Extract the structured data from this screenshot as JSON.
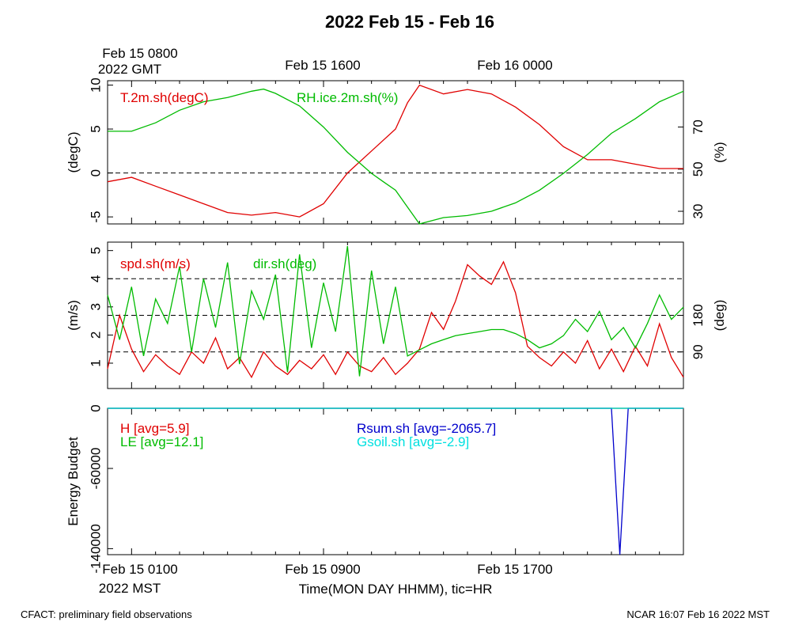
{
  "title": "2022 Feb 15 - Feb 16",
  "top_time_labels": [
    {
      "lines": [
        "Feb 15 0800",
        "2022 GMT"
      ]
    },
    {
      "lines": [
        "Feb 15 1600"
      ]
    },
    {
      "lines": [
        "Feb 16 0000"
      ]
    }
  ],
  "bottom_time_labels": [
    {
      "lines": [
        "Feb 15 0100",
        "2022 MST"
      ]
    },
    {
      "lines": [
        "Feb 15 0900"
      ]
    },
    {
      "lines": [
        "Feb 15 1700"
      ]
    }
  ],
  "xlabel": "Time(MON DAY HHMM), tic=HR",
  "footer_left": "CFACT: preliminary field observations",
  "footer_right": "NCAR 16:07 Feb 16 2022 MST",
  "colors": {
    "red": "#e00000",
    "green": "#00bb00",
    "blue": "#0000cc",
    "cyan": "#00e0e0"
  },
  "chart_data": [
    {
      "type": "line",
      "panel": "temperature-humidity",
      "x_hours_range": [
        0,
        24
      ],
      "left_axis": {
        "label": "(degC)",
        "range": [
          -5.8,
          10.5
        ],
        "ticks": [
          -5,
          0,
          5,
          10
        ]
      },
      "right_axis": {
        "label": "(%)",
        "range": [
          24,
          92
        ],
        "ticks": [
          30,
          50,
          70
        ]
      },
      "reference_lines_left": [
        0
      ],
      "series": [
        {
          "name": "T.2m.sh(degC)",
          "axis": "left",
          "color": "red",
          "x": [
            0,
            1,
            2,
            3,
            4,
            5,
            6,
            7,
            8,
            9,
            10,
            11,
            12,
            12.5,
            13,
            14,
            15,
            16,
            17,
            18,
            19,
            20,
            21,
            22,
            23,
            24
          ],
          "y": [
            -1,
            -0.5,
            -1.5,
            -2.5,
            -3.5,
            -4.5,
            -4.8,
            -4.5,
            -5,
            -3.5,
            0,
            2.5,
            5,
            8,
            10,
            9,
            9.5,
            9,
            7.5,
            5.5,
            3,
            1.5,
            1.5,
            1,
            0.5,
            0.5
          ]
        },
        {
          "name": "RH.ice.2m.sh(%)",
          "axis": "right",
          "color": "green",
          "x": [
            0,
            1,
            2,
            3,
            4,
            5,
            6,
            6.5,
            7,
            8,
            9,
            10,
            11,
            11.5,
            12,
            13,
            14,
            15,
            16,
            17,
            18,
            19,
            20,
            21,
            22,
            23,
            24
          ],
          "y": [
            68,
            68,
            72,
            78,
            82,
            84,
            87,
            88,
            86,
            80,
            70,
            58,
            48,
            44,
            40,
            24,
            27,
            28,
            30,
            34,
            40,
            48,
            57,
            67,
            74,
            82,
            87
          ]
        }
      ],
      "legend": [
        "T.2m.sh(degC)",
        "RH.ice.2m.sh(%)"
      ]
    },
    {
      "type": "line",
      "panel": "wind",
      "x_hours_range": [
        0,
        24
      ],
      "left_axis": {
        "label": "(m/s)",
        "range": [
          0.1,
          5.3
        ],
        "ticks": [
          1,
          2,
          3,
          4,
          5
        ]
      },
      "right_axis": {
        "label": "(deg)",
        "range": [
          0,
          360
        ],
        "ticks": [
          90,
          180
        ]
      },
      "reference_lines_right": [
        90,
        180,
        270
      ],
      "series": [
        {
          "name": "spd.sh(m/s)",
          "axis": "left",
          "color": "red",
          "x": [
            0,
            0.5,
            1,
            1.5,
            2,
            2.5,
            3,
            3.5,
            4,
            4.5,
            5,
            5.5,
            6,
            6.5,
            7,
            7.5,
            8,
            8.5,
            9,
            9.5,
            10,
            10.5,
            11,
            11.5,
            12,
            12.5,
            13,
            13.5,
            14,
            14.5,
            15,
            15.5,
            16,
            16.5,
            17,
            17.5,
            18,
            18.5,
            19,
            19.5,
            20,
            20.5,
            21,
            21.5,
            22,
            22.5,
            23,
            23.5,
            24
          ],
          "y": [
            0.8,
            2.7,
            1.5,
            0.7,
            1.3,
            0.9,
            0.6,
            1.4,
            1.0,
            1.9,
            0.8,
            1.2,
            0.5,
            1.4,
            0.9,
            0.6,
            1.1,
            0.8,
            1.3,
            0.6,
            1.4,
            0.9,
            0.7,
            1.2,
            0.6,
            1.0,
            1.5,
            2.8,
            2.2,
            3.2,
            4.5,
            4.1,
            3.8,
            4.6,
            3.5,
            1.6,
            1.2,
            0.9,
            1.4,
            1.0,
            1.8,
            0.8,
            1.5,
            0.7,
            1.6,
            0.9,
            2.4,
            1.2,
            0.5
          ]
        },
        {
          "name": "dir.sh(deg)",
          "axis": "right",
          "color": "green",
          "x": [
            0,
            0.5,
            1,
            1.5,
            2,
            2.5,
            3,
            3.5,
            4,
            4.5,
            5,
            5.5,
            6,
            6.5,
            7,
            7.5,
            8,
            8.5,
            9,
            9.5,
            10,
            10.5,
            11,
            11.5,
            12,
            12.5,
            13,
            13.5,
            14,
            14.5,
            15,
            15.5,
            16,
            16.5,
            17,
            17.5,
            18,
            18.5,
            19,
            19.5,
            20,
            20.5,
            21,
            21.5,
            22,
            22.5,
            23,
            23.5,
            24
          ],
          "y": [
            230,
            120,
            250,
            80,
            220,
            160,
            300,
            90,
            270,
            150,
            310,
            60,
            240,
            170,
            280,
            40,
            330,
            100,
            260,
            140,
            350,
            30,
            290,
            110,
            250,
            80,
            95,
            110,
            120,
            130,
            135,
            140,
            145,
            145,
            135,
            120,
            100,
            110,
            130,
            170,
            140,
            190,
            120,
            150,
            100,
            160,
            230,
            170,
            200
          ]
        }
      ],
      "legend": [
        "spd.sh(m/s)",
        "dir.sh(deg)"
      ]
    },
    {
      "type": "line",
      "panel": "energy-budget",
      "x_hours_range": [
        0,
        24
      ],
      "left_axis": {
        "label": "Energy Budget",
        "range": [
          -146000,
          0
        ],
        "ticks": [
          0,
          -60000,
          -140000
        ]
      },
      "series": [
        {
          "name": "H [avg=5.9]",
          "color": "red",
          "x": [
            0,
            24
          ],
          "y": [
            0,
            0
          ]
        },
        {
          "name": "LE [avg=12.1]",
          "color": "green",
          "x": [
            0,
            24
          ],
          "y": [
            0,
            0
          ]
        },
        {
          "name": "Rsum.sh [avg=-2065.7]",
          "color": "blue",
          "x": [
            0,
            21,
            21.35,
            21.7,
            24
          ],
          "y": [
            0,
            0,
            -146000,
            0,
            0
          ]
        },
        {
          "name": "Gsoil.sh [avg=-2.9]",
          "color": "cyan",
          "x": [
            0,
            24
          ],
          "y": [
            0,
            0
          ]
        }
      ],
      "legend": [
        "H [avg=5.9]",
        "LE [avg=12.1]",
        "Rsum.sh [avg=-2065.7]",
        "Gsoil.sh [avg=-2.9]"
      ]
    }
  ]
}
